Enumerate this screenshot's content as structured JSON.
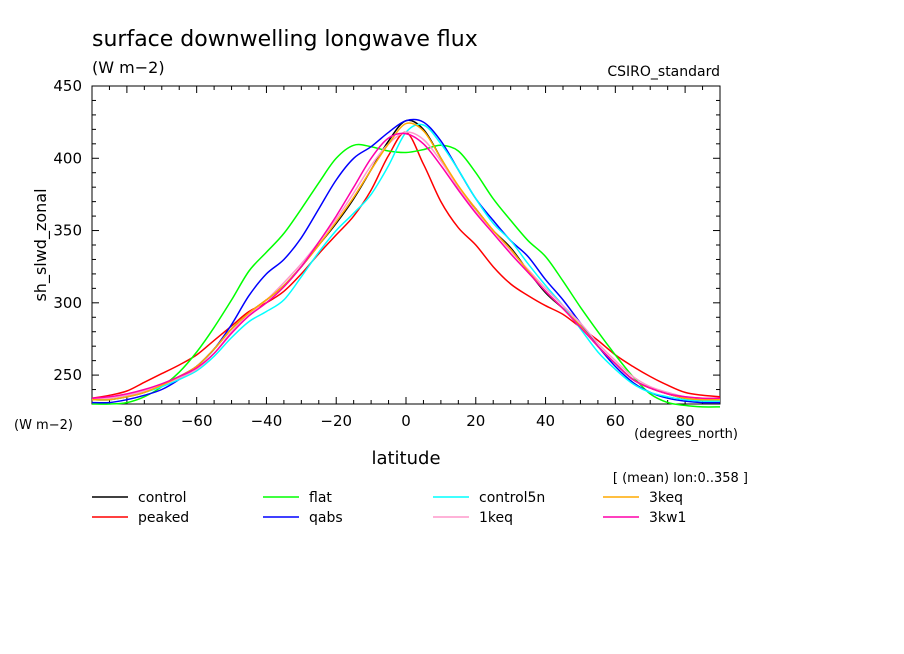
{
  "chart_data": {
    "type": "line",
    "title": "surface downwelling longwave flux",
    "units": "(W m−2)",
    "dataset": "CSIRO_standard",
    "ylabel": "sh_slwd_zonal",
    "xlabel": "latitude",
    "y_units": "(W m−2)",
    "x_units": "(degrees_north)",
    "note": "[ (mean) lon:0..358 ]",
    "xlim": [
      -90,
      90
    ],
    "ylim": [
      230,
      450
    ],
    "x_ticks": [
      -80,
      -60,
      -40,
      -20,
      0,
      20,
      40,
      60,
      80
    ],
    "x_tick_labels": [
      "−80",
      "−60",
      "−40",
      "−20",
      "0",
      "20",
      "40",
      "60",
      "80"
    ],
    "y_ticks": [
      250,
      300,
      350,
      400,
      450
    ],
    "y_tick_labels": [
      "250",
      "300",
      "350",
      "400",
      "450"
    ],
    "x": [
      -90,
      -85,
      -80,
      -75,
      -70,
      -65,
      -60,
      -55,
      -50,
      -45,
      -40,
      -35,
      -30,
      -25,
      -20,
      -15,
      -10,
      -5,
      0,
      5,
      10,
      15,
      20,
      25,
      30,
      35,
      40,
      45,
      50,
      55,
      60,
      65,
      70,
      75,
      80,
      85,
      90
    ],
    "series": [
      {
        "name": "control",
        "color": "#000000",
        "values": [
          233,
          233,
          235,
          238,
          243,
          249,
          256,
          268,
          282,
          293,
          302,
          312,
          325,
          340,
          355,
          372,
          392,
          412,
          426,
          420,
          400,
          380,
          365,
          350,
          338,
          322,
          307,
          296,
          284,
          270,
          258,
          247,
          241,
          237,
          234,
          233,
          233
        ]
      },
      {
        "name": "peaked",
        "color": "#ff0000",
        "values": [
          234,
          236,
          239,
          245,
          251,
          257,
          264,
          274,
          284,
          294,
          300,
          308,
          320,
          334,
          347,
          360,
          378,
          402,
          418,
          396,
          370,
          352,
          340,
          325,
          313,
          305,
          298,
          292,
          283,
          274,
          264,
          256,
          249,
          243,
          238,
          236,
          235
        ]
      },
      {
        "name": "flat",
        "color": "#00ff00",
        "values": [
          230,
          230,
          231,
          235,
          242,
          252,
          266,
          283,
          302,
          322,
          335,
          348,
          365,
          383,
          400,
          409,
          408,
          405,
          404,
          406,
          409,
          405,
          390,
          372,
          357,
          343,
          332,
          315,
          297,
          280,
          264,
          249,
          237,
          231,
          229,
          228,
          228
        ]
      },
      {
        "name": "qabs",
        "color": "#0000ff",
        "values": [
          231,
          231,
          233,
          236,
          240,
          247,
          256,
          268,
          285,
          305,
          320,
          330,
          345,
          365,
          385,
          400,
          408,
          418,
          426,
          425,
          412,
          392,
          372,
          357,
          343,
          332,
          316,
          302,
          286,
          270,
          256,
          245,
          238,
          234,
          232,
          231,
          231
        ]
      },
      {
        "name": "control5n",
        "color": "#00ffff",
        "values": [
          233,
          233,
          235,
          238,
          242,
          247,
          253,
          263,
          276,
          287,
          294,
          302,
          318,
          335,
          350,
          362,
          375,
          395,
          418,
          423,
          410,
          392,
          372,
          355,
          343,
          327,
          312,
          298,
          282,
          266,
          254,
          244,
          238,
          235,
          233,
          232,
          232
        ]
      },
      {
        "name": "1keq",
        "color": "#ff99cc",
        "values": [
          234,
          234,
          236,
          239,
          243,
          248,
          254,
          265,
          280,
          292,
          302,
          314,
          327,
          342,
          358,
          376,
          395,
          410,
          418,
          413,
          398,
          380,
          363,
          350,
          336,
          323,
          310,
          298,
          286,
          272,
          260,
          249,
          242,
          238,
          235,
          234,
          234
        ]
      },
      {
        "name": "3keq",
        "color": "#ffaa00",
        "values": [
          233,
          233,
          235,
          238,
          243,
          249,
          256,
          268,
          282,
          293,
          302,
          312,
          325,
          340,
          356,
          373,
          392,
          410,
          424,
          419,
          400,
          381,
          365,
          350,
          337,
          322,
          308,
          296,
          284,
          270,
          258,
          247,
          241,
          237,
          234,
          233,
          233
        ]
      },
      {
        "name": "3kw1",
        "color": "#ff00aa",
        "values": [
          234,
          235,
          237,
          240,
          244,
          249,
          255,
          265,
          279,
          291,
          300,
          311,
          325,
          342,
          360,
          380,
          400,
          414,
          417,
          410,
          395,
          378,
          362,
          348,
          334,
          321,
          308,
          296,
          283,
          270,
          258,
          247,
          241,
          237,
          235,
          234,
          234
        ]
      }
    ]
  }
}
